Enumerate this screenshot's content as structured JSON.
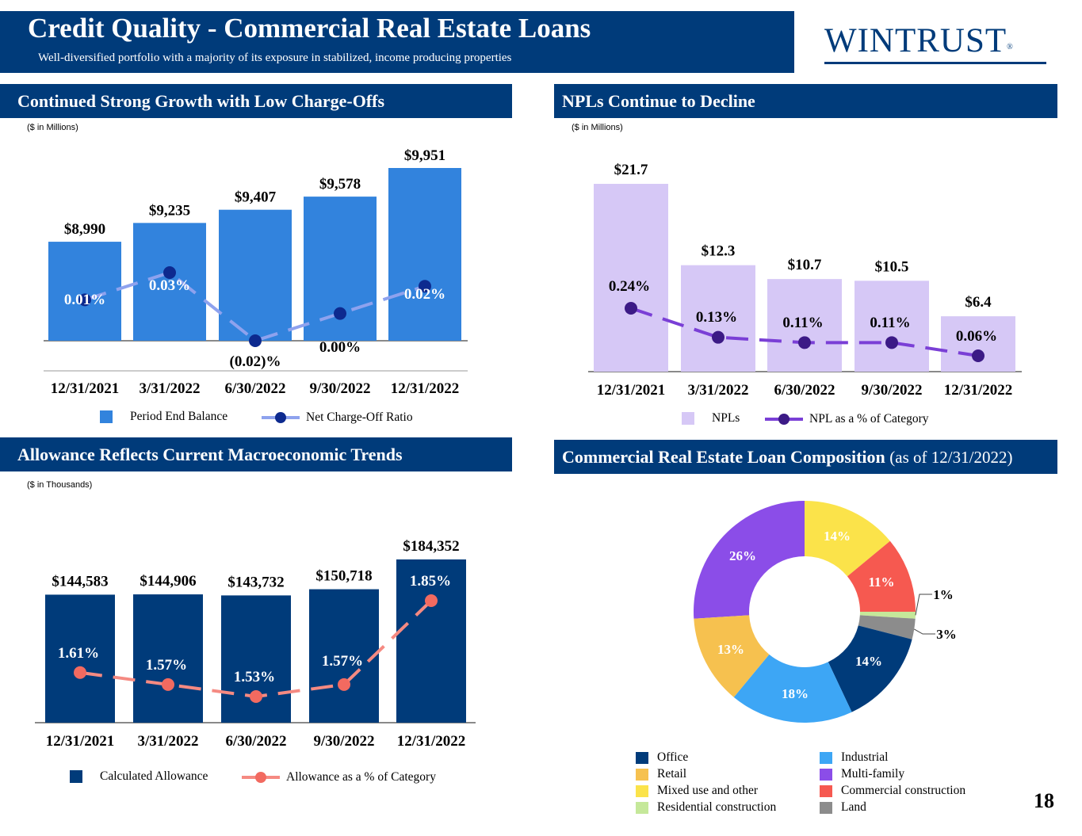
{
  "header": {
    "title": "Credit Quality - Commercial Real Estate Loans",
    "subtitle": "Well-diversified portfolio with a majority of its exposure in stabilized, income producing properties",
    "logo_text": "WINTRUST",
    "logo_mark": "®"
  },
  "page_number": "18",
  "colors": {
    "navy": "#003b7a",
    "bar_blue": "#3283dd",
    "line_lightblue": "#8ea2ee",
    "dot_darkblue": "#0d2a8f",
    "lavender": "#d6c8f6",
    "purple": "#7a3fd6",
    "dot_purple": "#3c1a86",
    "salmon": "#f27e72"
  },
  "sections": {
    "growth": "Continued Strong Growth with Low Charge-Offs",
    "npl": "NPLs Continue to Decline",
    "allowance": "Allowance Reflects Current Macroeconomic Trends",
    "composition": "Commercial Real Estate Loan Composition",
    "composition_note": "(as of 12/31/2022)"
  },
  "chart_data": [
    {
      "id": "growth",
      "type": "bar",
      "units_label": "($ in Millions)",
      "categories": [
        "12/31/2021",
        "3/31/2022",
        "6/30/2022",
        "9/30/2022",
        "12/31/2022"
      ],
      "series": [
        {
          "name": "Period End Balance",
          "kind": "bar",
          "values": [
            8990,
            9235,
            9407,
            9578,
            9951
          ],
          "labels": [
            "$8,990",
            "$9,235",
            "$9,407",
            "$9,578",
            "$9,951"
          ]
        },
        {
          "name": "Net Charge-Off Ratio",
          "kind": "line",
          "values": [
            0.01,
            0.03,
            -0.02,
            0.0,
            0.02
          ],
          "labels": [
            "0.01%",
            "0.03%",
            "(0.02)%",
            "0.00%",
            "0.02%"
          ]
        }
      ],
      "legend": [
        "Period End Balance",
        "Net Charge-Off Ratio"
      ]
    },
    {
      "id": "npl",
      "type": "bar",
      "units_label": "($ in Millions)",
      "categories": [
        "12/31/2021",
        "3/31/2022",
        "6/30/2022",
        "9/30/2022",
        "12/31/2022"
      ],
      "series": [
        {
          "name": "NPLs",
          "kind": "bar",
          "values": [
            21.7,
            12.3,
            10.7,
            10.5,
            6.4
          ],
          "labels": [
            "$21.7",
            "$12.3",
            "$10.7",
            "$10.5",
            "$6.4"
          ]
        },
        {
          "name": "NPL as a % of Category",
          "kind": "line",
          "values": [
            0.24,
            0.13,
            0.11,
            0.11,
            0.06
          ],
          "labels": [
            "0.24%",
            "0.13%",
            "0.11%",
            "0.11%",
            "0.06%"
          ]
        }
      ],
      "legend": [
        "NPLs",
        "NPL as a % of Category"
      ]
    },
    {
      "id": "allowance",
      "type": "bar",
      "units_label": "($ in Thousands)",
      "categories": [
        "12/31/2021",
        "3/31/2022",
        "6/30/2022",
        "9/30/2022",
        "12/31/2022"
      ],
      "series": [
        {
          "name": "Calculated Allowance",
          "kind": "bar",
          "values": [
            144583,
            144906,
            143732,
            150718,
            184352
          ],
          "labels": [
            "$144,583",
            "$144,906",
            "$143,732",
            "$150,718",
            "$184,352"
          ]
        },
        {
          "name": "Allowance as a % of Category",
          "kind": "line",
          "values": [
            1.61,
            1.57,
            1.53,
            1.57,
            1.85
          ],
          "labels": [
            "1.61%",
            "1.57%",
            "1.53%",
            "1.57%",
            "1.85%"
          ]
        }
      ],
      "legend": [
        "Calculated Allowance",
        "Allowance as a % of Category"
      ]
    },
    {
      "id": "composition",
      "type": "pie",
      "subtype": "donut",
      "slices": [
        {
          "name": "Office",
          "value": 14,
          "label": "14%",
          "color": "#003b7a"
        },
        {
          "name": "Industrial",
          "value": 18,
          "label": "18%",
          "color": "#3da6f5"
        },
        {
          "name": "Retail",
          "value": 13,
          "label": "13%",
          "color": "#f6c14f"
        },
        {
          "name": "Multi-family",
          "value": 26,
          "label": "26%",
          "color": "#8b4de8"
        },
        {
          "name": "Mixed use and other",
          "value": 14,
          "label": "14%",
          "color": "#fbe34a"
        },
        {
          "name": "Commercial construction",
          "value": 11,
          "label": "11%",
          "color": "#f65950"
        },
        {
          "name": "Residential construction",
          "value": 1,
          "label": "1%",
          "color": "#c5e89a"
        },
        {
          "name": "Land",
          "value": 3,
          "label": "3%",
          "color": "#8c8c8c"
        }
      ],
      "legend_order": [
        "Office",
        "Industrial",
        "Retail",
        "Multi-family",
        "Mixed use and other",
        "Commercial construction",
        "Residential construction",
        "Land"
      ]
    }
  ]
}
